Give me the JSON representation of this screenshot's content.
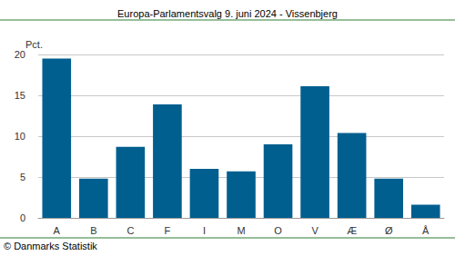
{
  "chart_data": {
    "type": "bar",
    "title": "Europa-Parlamentsvalg 9. juni 2024 - Vissenbjerg",
    "ylabel": "Pct.",
    "source": "© Danmarks Statistik",
    "categories": [
      "A",
      "B",
      "C",
      "F",
      "I",
      "M",
      "O",
      "V",
      "Æ",
      "Ø",
      "Å"
    ],
    "values": [
      19.5,
      4.8,
      8.7,
      13.9,
      6.0,
      5.7,
      9.0,
      16.1,
      10.4,
      4.8,
      1.6
    ],
    "color": "#005f8f",
    "ylim": [
      0,
      20
    ],
    "yticks": [
      0,
      5,
      10,
      15,
      20
    ],
    "grid": true
  }
}
